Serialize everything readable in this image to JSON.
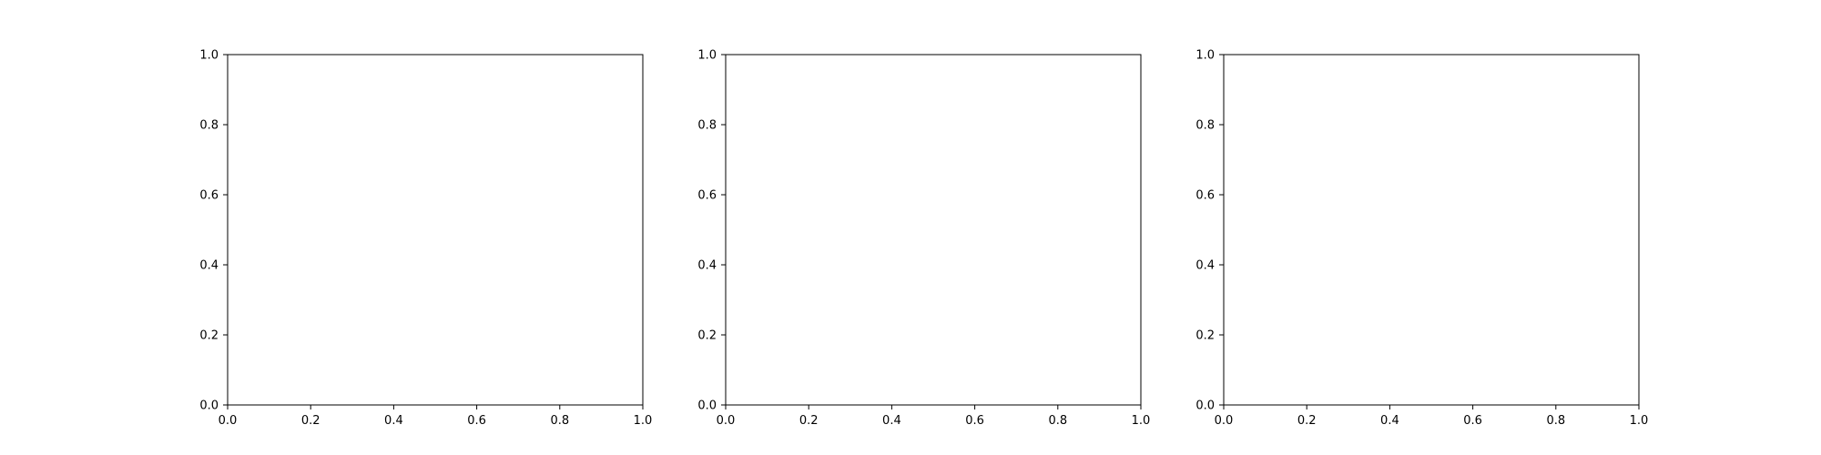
{
  "chart_data": [
    {
      "type": "scatter",
      "title": "",
      "xlabel": "",
      "ylabel": "",
      "xlim": [
        0,
        1
      ],
      "ylim": [
        0,
        1
      ],
      "xticks": [
        "0.0",
        "0.2",
        "0.4",
        "0.6",
        "0.8",
        "1.0"
      ],
      "yticks": [
        "0.0",
        "0.2",
        "0.4",
        "0.6",
        "0.8",
        "1.0"
      ],
      "grid": false,
      "series": []
    },
    {
      "type": "scatter",
      "title": "",
      "xlabel": "",
      "ylabel": "",
      "xlim": [
        0,
        1
      ],
      "ylim": [
        0,
        1
      ],
      "xticks": [
        "0.0",
        "0.2",
        "0.4",
        "0.6",
        "0.8",
        "1.0"
      ],
      "yticks": [
        "0.0",
        "0.2",
        "0.4",
        "0.6",
        "0.8",
        "1.0"
      ],
      "grid": false,
      "series": []
    },
    {
      "type": "scatter",
      "title": "",
      "xlabel": "",
      "ylabel": "",
      "xlim": [
        0,
        1
      ],
      "ylim": [
        0,
        1
      ],
      "xticks": [
        "0.0",
        "0.2",
        "0.4",
        "0.6",
        "0.8",
        "1.0"
      ],
      "yticks": [
        "0.0",
        "0.2",
        "0.4",
        "0.6",
        "0.8",
        "1.0"
      ],
      "grid": false,
      "series": []
    }
  ]
}
